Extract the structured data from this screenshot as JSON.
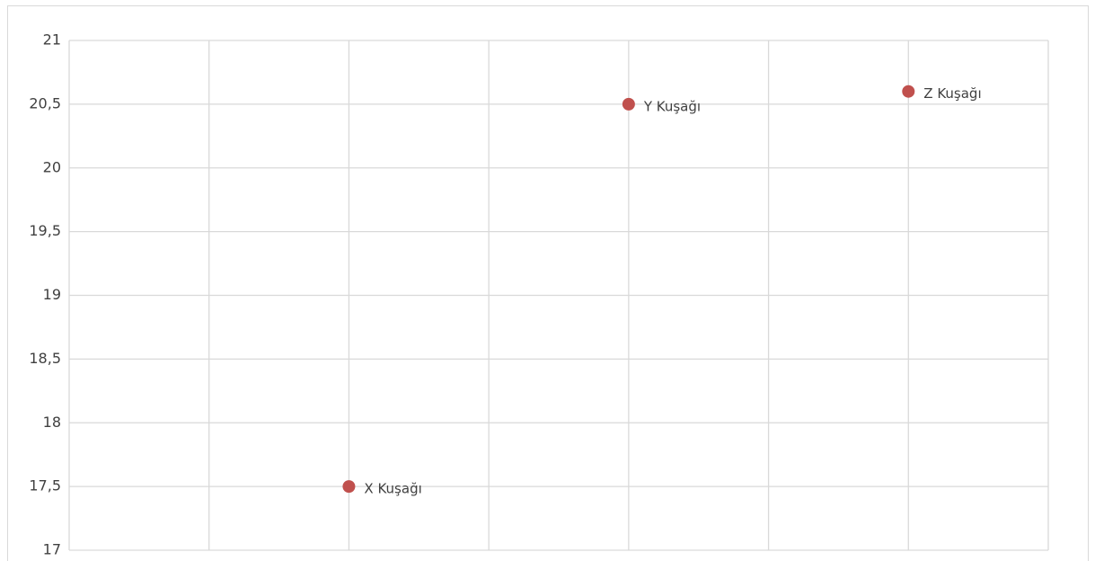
{
  "chart_data": {
    "type": "scatter",
    "x": [
      2,
      4,
      6
    ],
    "values": [
      17.5,
      20.5,
      20.6
    ],
    "labels": [
      "X Kuşağı",
      "Y Kuşağı",
      "Z Kuşağı"
    ],
    "color": "#c0504d",
    "xlim": [
      0,
      7
    ],
    "xticks": [
      0,
      1,
      2,
      3,
      4,
      5,
      6,
      7
    ],
    "ylim": [
      17,
      21
    ],
    "yticks": [
      17,
      {
        "value": 17.5,
        "label": "17,5"
      },
      18,
      {
        "value": 18.5,
        "label": "18,5"
      },
      19,
      {
        "value": 19.5,
        "label": "19,5"
      },
      20,
      {
        "value": 20.5,
        "label": "20,5"
      },
      21
    ],
    "grid": true
  }
}
